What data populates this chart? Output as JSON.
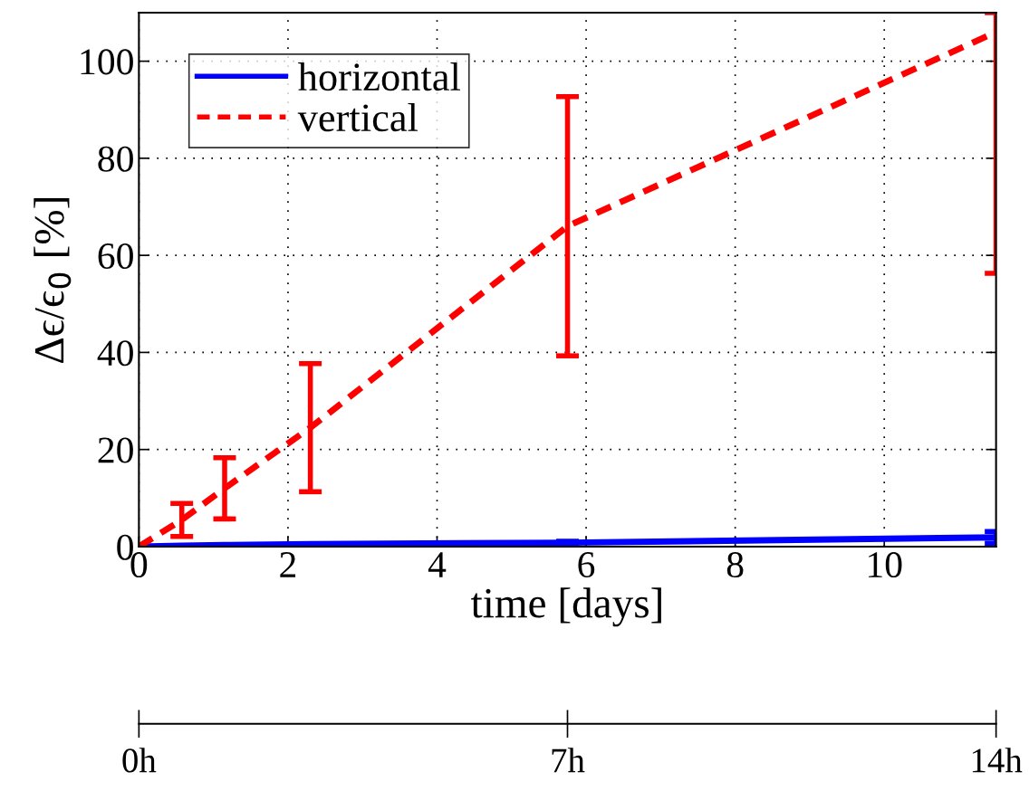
{
  "chart_data": {
    "type": "line",
    "xlabel": "time [days]",
    "ylabel": "Δϵ/ϵ$_{0}$ [%]",
    "xlim": [
      0,
      11.5
    ],
    "xticks": [
      0,
      2,
      4,
      6,
      8,
      10
    ],
    "ylim": [
      0,
      110
    ],
    "yticks": [
      0,
      20,
      40,
      60,
      80,
      100
    ],
    "x2lim": [
      0,
      14
    ],
    "x2ticks": [
      {
        "value": 0,
        "label": "0h"
      },
      {
        "value": 7,
        "label": "7h"
      },
      {
        "value": 14,
        "label": "14h"
      }
    ],
    "grid": true,
    "legend": "top left",
    "series": [
      {
        "name": "horizontal",
        "color": "#0000ff",
        "line_style": "solid",
        "x": [
          0,
          0.575,
          1.15,
          2.3,
          5.75,
          11.5
        ],
        "values": [
          0,
          0.2,
          0.3,
          0.5,
          0.8,
          1.9
        ],
        "errors": [
          null,
          null,
          null,
          null,
          0.3,
          1.2
        ]
      },
      {
        "name": "vertical",
        "color": "#ff0000",
        "line_style": "dashed",
        "x": [
          0,
          0.575,
          1.15,
          2.3,
          5.75,
          11.5
        ],
        "values": [
          0,
          5.5,
          12,
          24.5,
          66,
          106
        ],
        "errors": [
          null,
          3.4,
          6.3,
          13.2,
          26.7,
          [
            56.3,
            110
          ]
        ]
      }
    ]
  }
}
